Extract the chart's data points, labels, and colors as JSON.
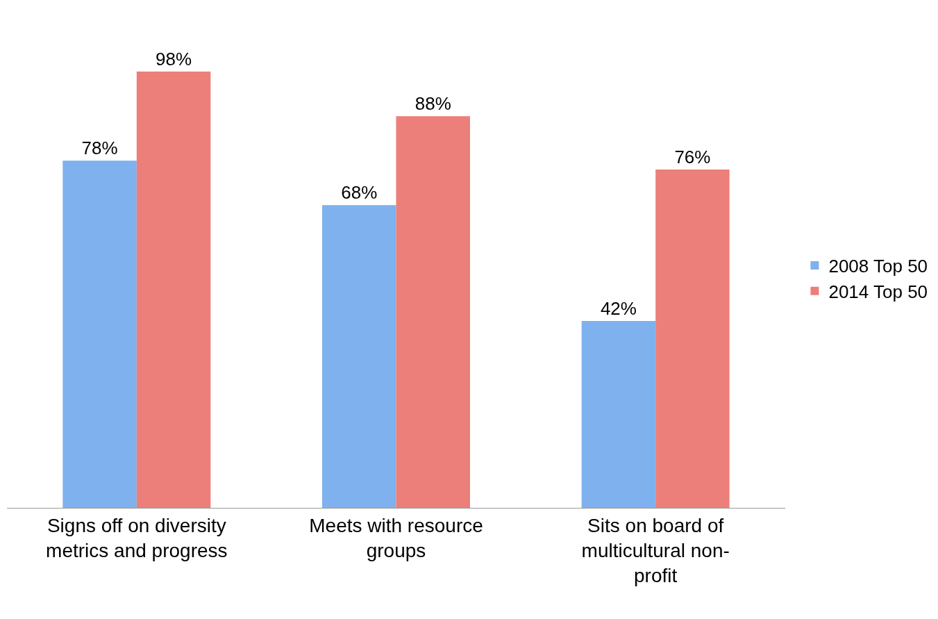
{
  "chart_data": {
    "type": "bar",
    "categories": [
      "Signs off on diversity metrics and progress",
      "Meets with resource groups",
      "Sits on board of multicultural non-profit"
    ],
    "series": [
      {
        "name": "2008 Top 50",
        "color": "#7fb1ee",
        "values": [
          78,
          68,
          42
        ],
        "value_labels": [
          "78%",
          "68%",
          "42%"
        ]
      },
      {
        "name": "2014 Top 50",
        "color": "#ec7f7a",
        "values": [
          98,
          88,
          76
        ],
        "value_labels": [
          "98%",
          "88%",
          "76%"
        ]
      }
    ],
    "legend": "right"
  }
}
